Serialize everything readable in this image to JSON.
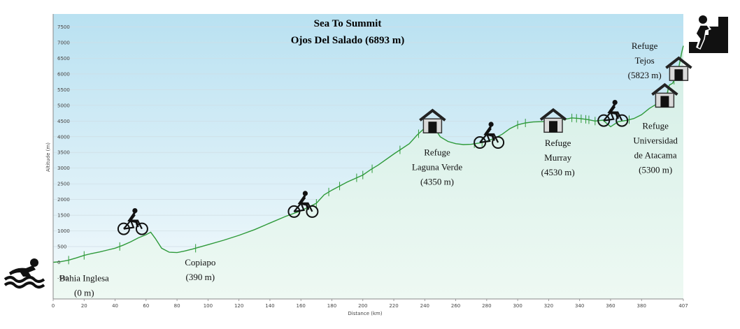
{
  "chart_data": {
    "type": "area",
    "title": "Sea To Summit",
    "subtitle": "Ojos Del Salado (6893 m)",
    "xlabel": "Distance (km)",
    "ylabel": "Altitude (m)",
    "xlim": [
      0,
      407
    ],
    "ylim": [
      -1000,
      7800
    ],
    "x_ticks": [
      "0",
      "20",
      "40",
      "60",
      "80",
      "100",
      "120",
      "140",
      "160",
      "180",
      "200",
      "220",
      "240",
      "260",
      "280",
      "300",
      "320",
      "340",
      "360",
      "380",
      "407"
    ],
    "y_ticks": [
      "-500",
      "0",
      "500",
      "1000",
      "1500",
      "2000",
      "2500",
      "3000",
      "3500",
      "4000",
      "4500",
      "5000",
      "5500",
      "6000",
      "6500",
      "7000",
      "7500"
    ],
    "grid": true,
    "series": [
      {
        "x": [
          0,
          5,
          10,
          15,
          20,
          25,
          30,
          35,
          40,
          45,
          50,
          55,
          60,
          63,
          66,
          70,
          75,
          80,
          85,
          90,
          100,
          110,
          120,
          130,
          140,
          150,
          160,
          170,
          175,
          180,
          190,
          200,
          205,
          210,
          220,
          230,
          235,
          240,
          243,
          246,
          250,
          255,
          260,
          265,
          270,
          275,
          280,
          285,
          290,
          295,
          300,
          305,
          310,
          315,
          320,
          325,
          330,
          335,
          340,
          345,
          350,
          355,
          360,
          365,
          370,
          375,
          380,
          385,
          390,
          393,
          396,
          398,
          400,
          402,
          404,
          406,
          407
        ],
        "y": [
          0,
          20,
          70,
          140,
          220,
          280,
          330,
          390,
          450,
          540,
          650,
          780,
          880,
          960,
          760,
          450,
          320,
          310,
          360,
          420,
          560,
          700,
          860,
          1040,
          1250,
          1460,
          1640,
          1880,
          2150,
          2300,
          2560,
          2780,
          2950,
          3100,
          3450,
          3780,
          4050,
          4280,
          4400,
          4300,
          4000,
          3850,
          3780,
          3750,
          3760,
          3800,
          3860,
          3950,
          4080,
          4260,
          4380,
          4440,
          4470,
          4480,
          4490,
          4500,
          4550,
          4600,
          4580,
          4550,
          4500,
          4530,
          4320,
          4480,
          4520,
          4580,
          4700,
          4900,
          5050,
          5160,
          5280,
          5650,
          5700,
          5900,
          6200,
          6700,
          6900
        ]
      }
    ],
    "annotations": [
      {
        "x": 20,
        "y": -600,
        "lines": [
          "Bahia Inglesa",
          "(0 m)"
        ]
      },
      {
        "x": 95,
        "y": -100,
        "lines": [
          "Copiapo",
          "(390 m)"
        ]
      },
      {
        "x": 248,
        "y": 3400,
        "lines": [
          "Refuge",
          "Laguna Verde",
          "(4350 m)"
        ]
      },
      {
        "x": 326,
        "y": 3700,
        "lines": [
          "Refuge",
          "Murray",
          "(4530 m)"
        ]
      },
      {
        "x": 389,
        "y": 4250,
        "lines": [
          "Refuge",
          "Universidad",
          "de Atacama",
          "(5300 m)"
        ]
      },
      {
        "x": 382,
        "y": 6800,
        "lines": [
          "Refuge",
          "Tejos",
          "(5823 m)"
        ]
      }
    ],
    "markers": [
      {
        "icon": "bicycle-icon",
        "x": 51,
        "y": 1200
      },
      {
        "icon": "bicycle-icon",
        "x": 161,
        "y": 1750
      },
      {
        "icon": "bicycle-icon",
        "x": 281,
        "y": 3950
      },
      {
        "icon": "bicycle-icon",
        "x": 361,
        "y": 4650
      },
      {
        "icon": "hut-icon",
        "x": 245,
        "y": 4480
      },
      {
        "icon": "hut-icon",
        "x": 323,
        "y": 4500
      },
      {
        "icon": "hut-icon",
        "x": 395,
        "y": 5300
      },
      {
        "icon": "hut-icon",
        "x": 404,
        "y": 6150
      }
    ],
    "colors": {
      "line": "#2f9a3a",
      "fill_top": "#d6efea",
      "fill_bottom": "#f1faf5",
      "plot_top": "#b9e1f1",
      "plot_bottom": "#f3f9fc",
      "grid": "#cfdde4"
    }
  }
}
